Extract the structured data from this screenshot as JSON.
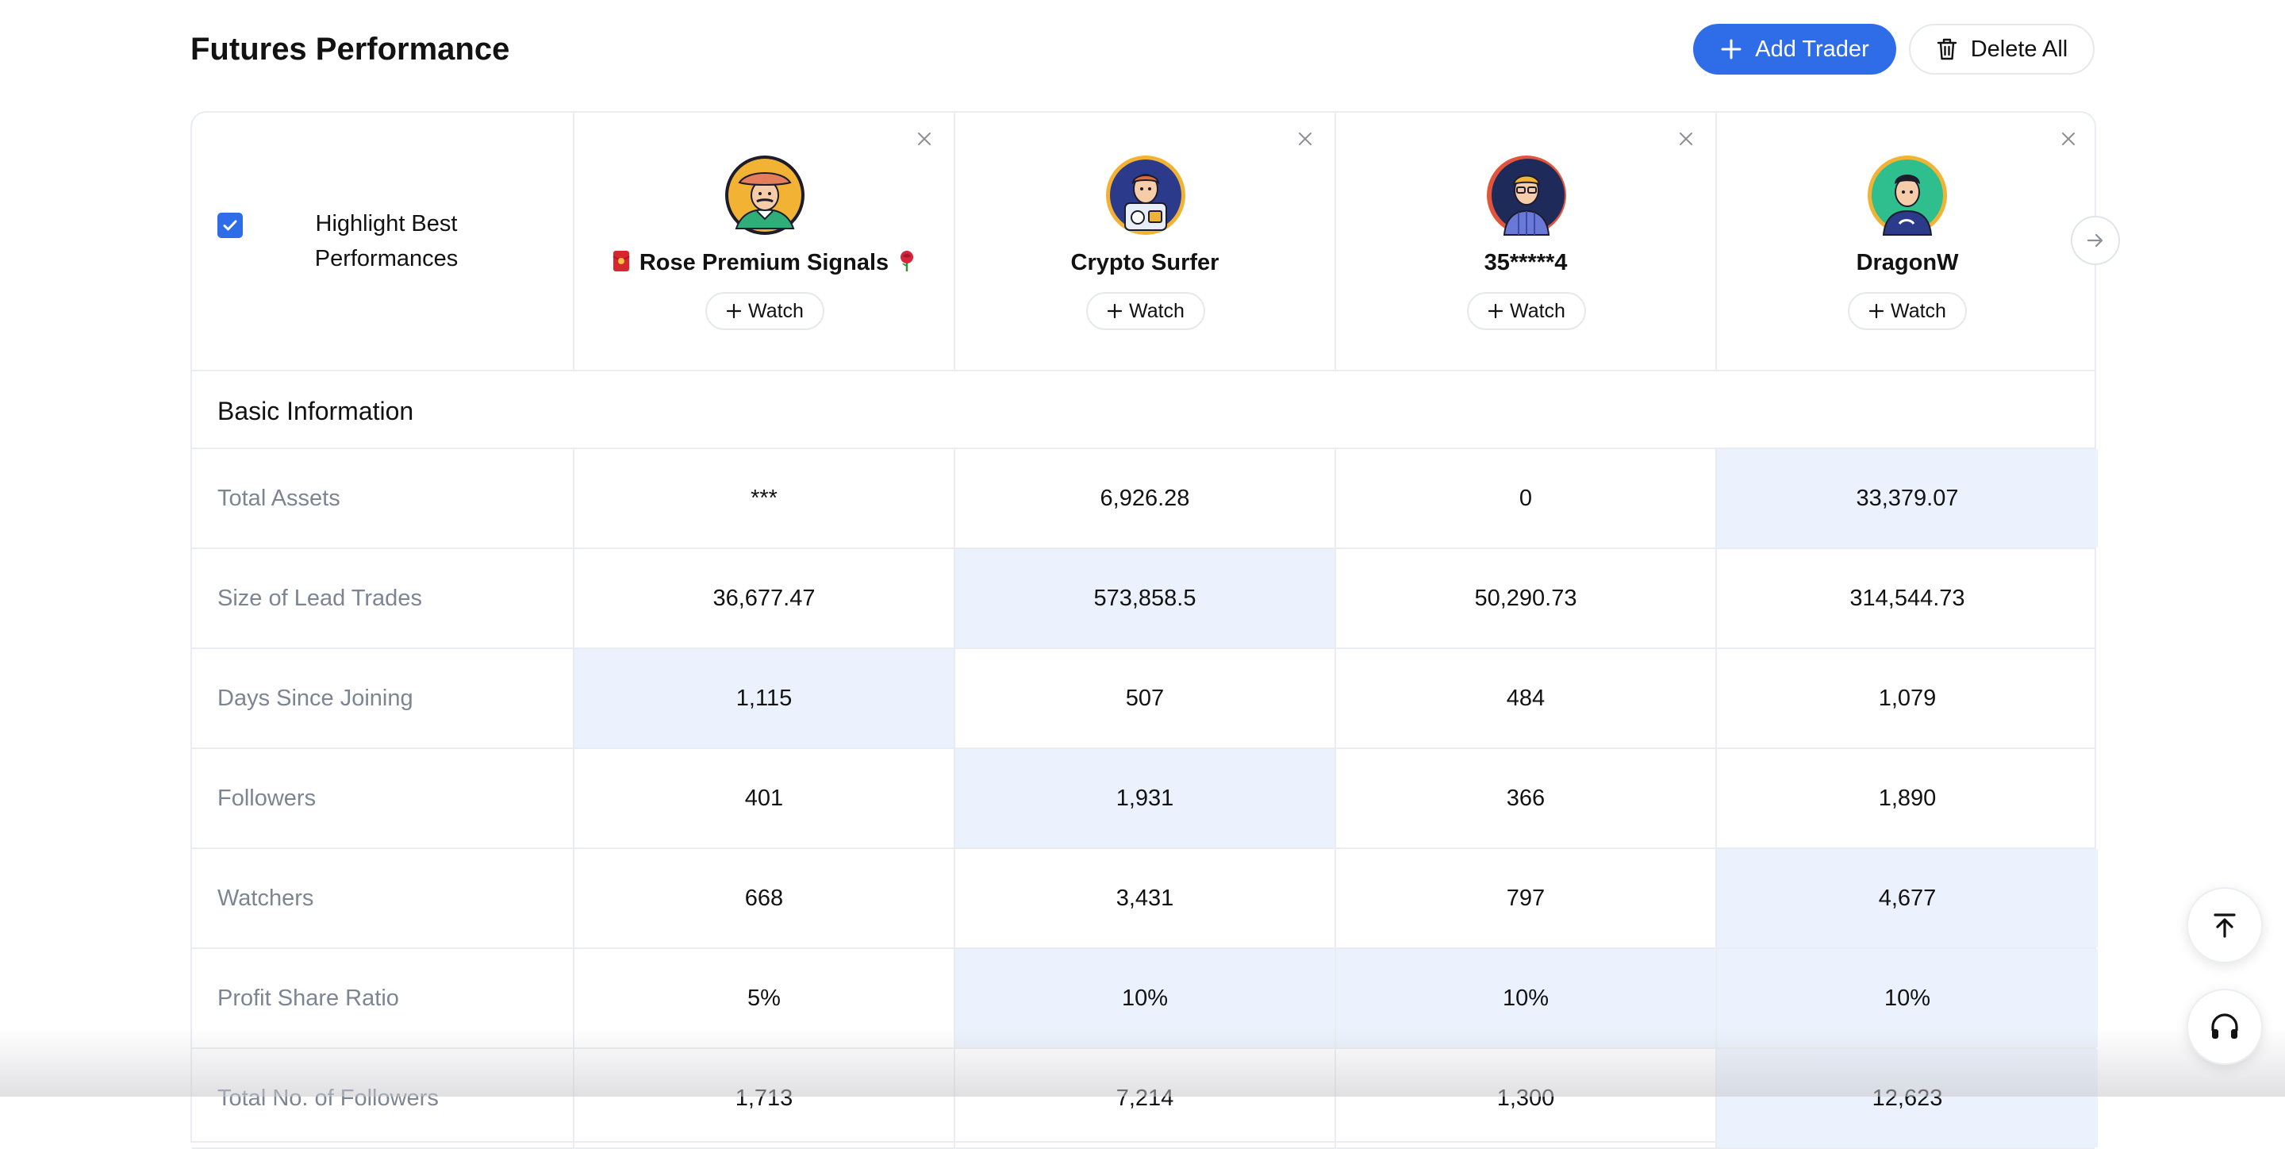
{
  "header": {
    "title": "Futures Performance",
    "add_trader_label": "Add Trader",
    "delete_all_label": "Delete All"
  },
  "colors": {
    "accent": "#2f6de8",
    "best_highlight": "#ebf2fd",
    "label_gray": "#7d8593",
    "border": "#e9ecf0"
  },
  "controls": {
    "highlight_label": "Highlight Best Performances",
    "highlight_checked": true
  },
  "traders": [
    {
      "name": "Rose Premium Signals",
      "watch_label": "Watch",
      "prefix_icon": "red-envelope-icon",
      "suffix_icon": "rose-icon"
    },
    {
      "name": "Crypto Surfer",
      "watch_label": "Watch"
    },
    {
      "name": "35*****4",
      "watch_label": "Watch"
    },
    {
      "name": "DragonW",
      "watch_label": "Watch"
    }
  ],
  "section": {
    "title": "Basic Information"
  },
  "rows": [
    {
      "label": "Total Assets",
      "values": [
        "***",
        "6,926.28",
        "0",
        "33,379.07"
      ],
      "best": 3
    },
    {
      "label": "Size of Lead Trades",
      "values": [
        "36,677.47",
        "573,858.5",
        "50,290.73",
        "314,544.73"
      ],
      "best": 1
    },
    {
      "label": "Days Since Joining",
      "values": [
        "1,115",
        "507",
        "484",
        "1,079"
      ],
      "best": 0
    },
    {
      "label": "Followers",
      "values": [
        "401",
        "1,931",
        "366",
        "1,890"
      ],
      "best": 1
    },
    {
      "label": "Watchers",
      "values": [
        "668",
        "3,431",
        "797",
        "4,677"
      ],
      "best": 3
    },
    {
      "label": "Profit Share Ratio",
      "values": [
        "5%",
        "10%",
        "10%",
        "10%"
      ],
      "best": [
        1,
        2,
        3
      ]
    },
    {
      "label": "Total No. of Followers",
      "values": [
        "1,713",
        "7,214",
        "1,300",
        "12,623"
      ],
      "best": 3
    }
  ]
}
